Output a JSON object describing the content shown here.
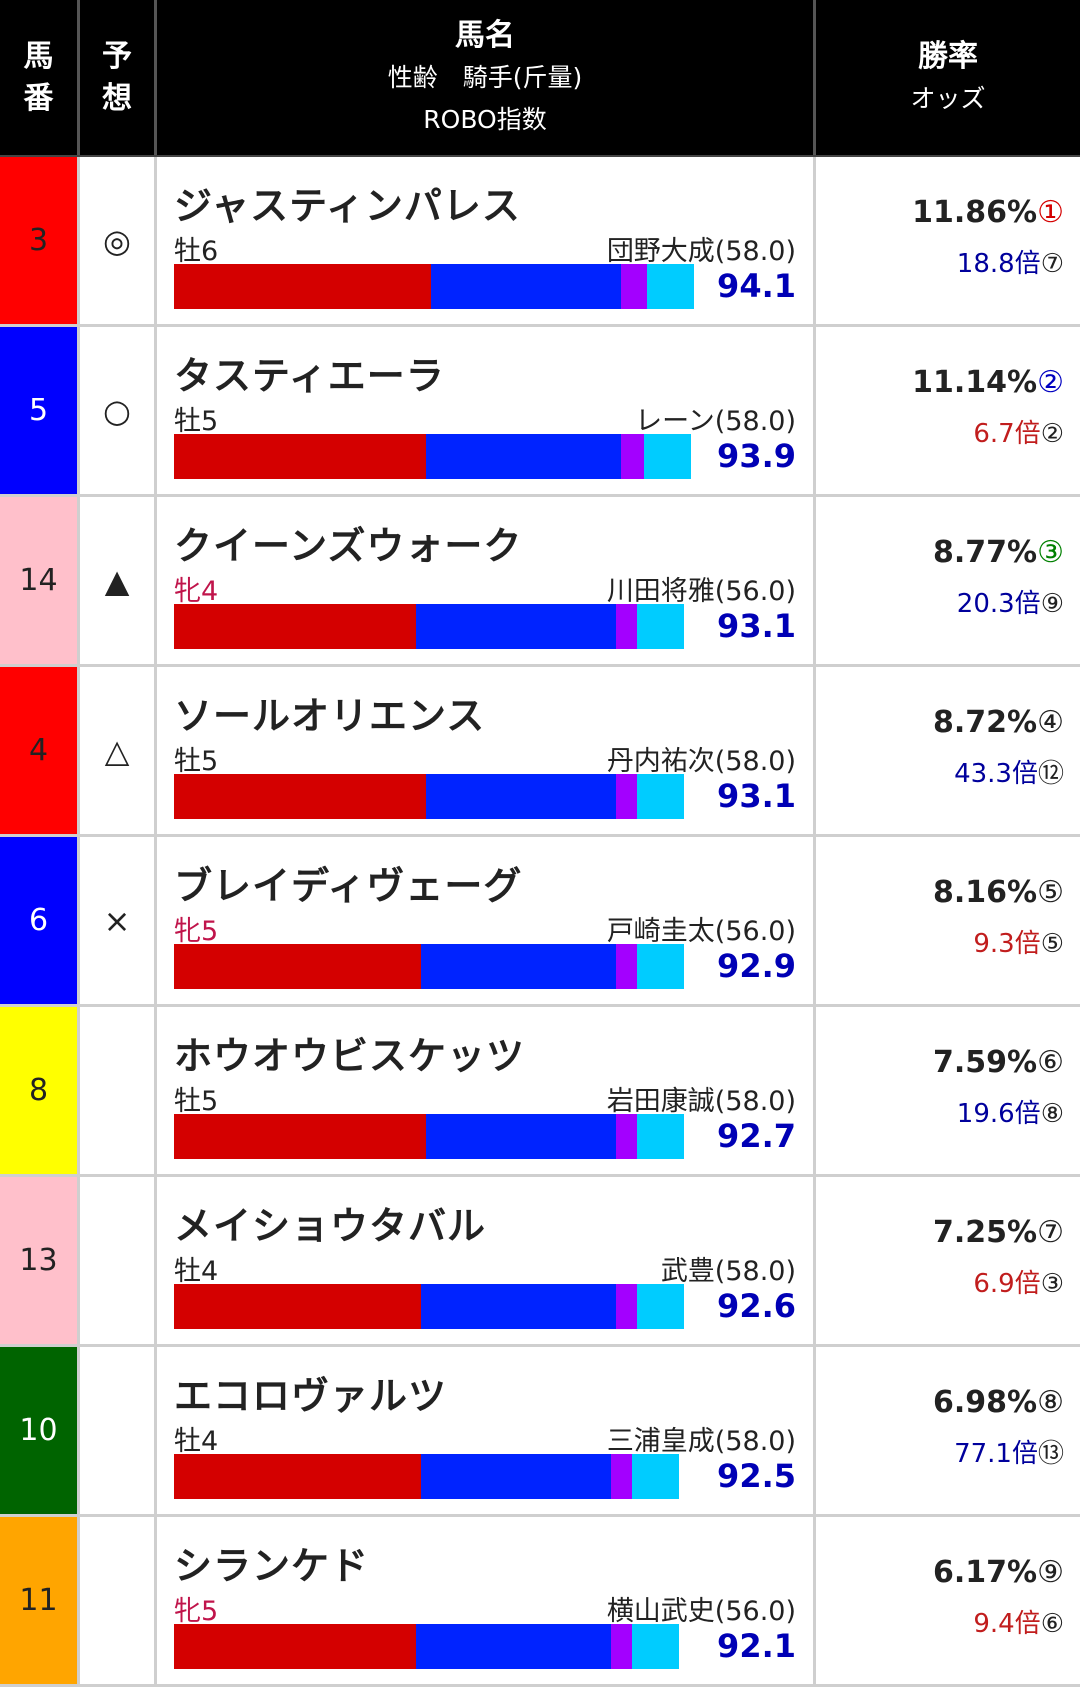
{
  "header": {
    "num": "馬\n番",
    "num_l1": "馬",
    "num_l2": "番",
    "pred_l1": "予",
    "pred_l2": "想",
    "name_l1": "馬名",
    "name_l2": "性齢　騎手(斤量)",
    "name_l3": "ROBO指数",
    "rate_l1": "勝率",
    "rate_l2": "オッズ"
  },
  "colors": {
    "bar_red": "#d40000",
    "bar_blue": "#0023ff",
    "bar_purple": "#a300ff",
    "bar_cyan": "#00ccff",
    "waku_white": "#ffffff",
    "waku_black": "#000000",
    "waku_red": "#ff0000",
    "waku_blue": "#0000ff",
    "waku_yellow": "#ffff00",
    "waku_green": "#006400",
    "waku_orange": "#ffa500",
    "waku_pink": "#ffc0cb"
  },
  "rows": [
    {
      "num": "3",
      "waku_color": "#ff0000",
      "num_color": "#222222",
      "pred": "◎",
      "name": "ジャスティンパレス",
      "sexage": "牡6",
      "mare": false,
      "jockey": "団野大成(58.0)",
      "robo": "94.1",
      "bar": [
        0.495,
        0.365,
        0.05,
        0.09
      ],
      "winrate": "11.86%",
      "winrank": "①",
      "winrank_color": "#d40000",
      "odds": "18.8倍",
      "oddsrank": "⑦",
      "odds_color": "blue"
    },
    {
      "num": "5",
      "waku_color": "#0000ff",
      "num_color": "#ffffff",
      "pred": "○",
      "name": "タスティエーラ",
      "sexage": "牡5",
      "mare": false,
      "jockey": "レーン(58.0)",
      "robo": "93.9",
      "bar": [
        0.485,
        0.375,
        0.045,
        0.09
      ],
      "winrate": "11.14%",
      "winrank": "②",
      "winrank_color": "#0000c0",
      "odds": "6.7倍",
      "oddsrank": "②",
      "odds_color": "red"
    },
    {
      "num": "14",
      "waku_color": "#ffc0cb",
      "num_color": "#222222",
      "pred": "▲",
      "name": "クイーンズウォーク",
      "sexage": "牝4",
      "mare": true,
      "jockey": "川田将雅(56.0)",
      "robo": "93.1",
      "bar": [
        0.465,
        0.385,
        0.04,
        0.09
      ],
      "winrate": "8.77%",
      "winrank": "③",
      "winrank_color": "#008000",
      "odds": "20.3倍",
      "oddsrank": "⑨",
      "odds_color": "blue"
    },
    {
      "num": "4",
      "waku_color": "#ff0000",
      "num_color": "#222222",
      "pred": "△",
      "name": "ソールオリエンス",
      "sexage": "牡5",
      "mare": false,
      "jockey": "丹内祐次(58.0)",
      "robo": "93.1",
      "bar": [
        0.485,
        0.365,
        0.04,
        0.09
      ],
      "winrate": "8.72%",
      "winrank": "④",
      "winrank_color": "#222222",
      "odds": "43.3倍",
      "oddsrank": "⑫",
      "odds_color": "blue"
    },
    {
      "num": "6",
      "waku_color": "#0000ff",
      "num_color": "#ffffff",
      "pred": "×",
      "name": "ブレイディヴェーグ",
      "sexage": "牝5",
      "mare": true,
      "jockey": "戸崎圭太(56.0)",
      "robo": "92.9",
      "bar": [
        0.475,
        0.375,
        0.04,
        0.09
      ],
      "winrate": "8.16%",
      "winrank": "⑤",
      "winrank_color": "#222222",
      "odds": "9.3倍",
      "oddsrank": "⑤",
      "odds_color": "red"
    },
    {
      "num": "8",
      "waku_color": "#ffff00",
      "num_color": "#222222",
      "pred": "",
      "name": "ホウオウビスケッツ",
      "sexage": "牡5",
      "mare": false,
      "jockey": "岩田康誠(58.0)",
      "robo": "92.7",
      "bar": [
        0.485,
        0.365,
        0.04,
        0.09
      ],
      "winrate": "7.59%",
      "winrank": "⑥",
      "winrank_color": "#222222",
      "odds": "19.6倍",
      "oddsrank": "⑧",
      "odds_color": "blue"
    },
    {
      "num": "13",
      "waku_color": "#ffc0cb",
      "num_color": "#222222",
      "pred": "",
      "name": "メイショウタバル",
      "sexage": "牡4",
      "mare": false,
      "jockey": "武豊(58.0)",
      "robo": "92.6",
      "bar": [
        0.475,
        0.375,
        0.04,
        0.09
      ],
      "winrate": "7.25%",
      "winrank": "⑦",
      "winrank_color": "#222222",
      "odds": "6.9倍",
      "oddsrank": "③",
      "odds_color": "red"
    },
    {
      "num": "10",
      "waku_color": "#006400",
      "num_color": "#ffffff",
      "pred": "",
      "name": "エコロヴァルツ",
      "sexage": "牡4",
      "mare": false,
      "jockey": "三浦皇成(58.0)",
      "robo": "92.5",
      "bar": [
        0.475,
        0.365,
        0.04,
        0.09
      ],
      "winrate": "6.98%",
      "winrank": "⑧",
      "winrank_color": "#222222",
      "odds": "77.1倍",
      "oddsrank": "⑬",
      "odds_color": "blue"
    },
    {
      "num": "11",
      "waku_color": "#ffa500",
      "num_color": "#222222",
      "pred": "",
      "name": "シランケド",
      "sexage": "牝5",
      "mare": true,
      "jockey": "横山武史(56.0)",
      "robo": "92.1",
      "bar": [
        0.465,
        0.375,
        0.04,
        0.09
      ],
      "winrate": "6.17%",
      "winrank": "⑨",
      "winrank_color": "#222222",
      "odds": "9.4倍",
      "oddsrank": "⑥",
      "odds_color": "red"
    }
  ]
}
